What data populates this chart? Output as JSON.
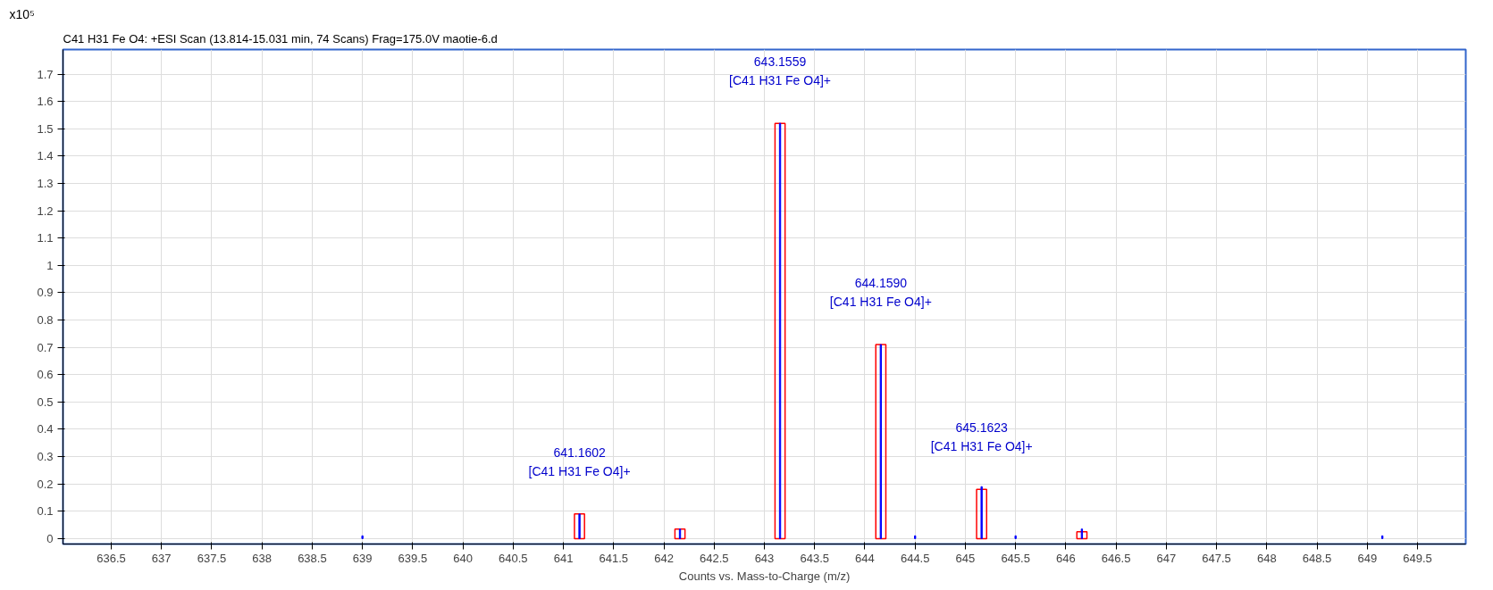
{
  "chart_data": {
    "type": "bar",
    "title": "C41 H31 Fe O4: +ESI Scan (13.814-15.031 min, 74 Scans) Frag=175.0V maotie-6.d",
    "ylabel": "x10⁵",
    "xlabel": "Counts vs. Mass-to-Charge (m/z)",
    "series": [
      {
        "color": "#ff0000",
        "x": [
          641.16,
          642.16,
          643.156,
          644.159,
          645.162,
          646.16
        ],
        "values": [
          0.09,
          0.035,
          1.52,
          0.71,
          0.18,
          0.025
        ]
      },
      {
        "color": "#0000ff",
        "x": [
          639.0,
          641.16,
          642.16,
          643.156,
          644.159,
          644.5,
          645.162,
          645.5,
          646.16,
          649.15
        ],
        "values": [
          0.01,
          0.09,
          0.035,
          1.52,
          0.71,
          0.01,
          0.19,
          0.01,
          0.035,
          0.01
        ]
      }
    ],
    "annotations": [
      {
        "text": "641.1602\n[C41 H31 Fe O4]+",
        "x": 641.1602,
        "y": 0.09
      },
      {
        "text": "643.1559\n[C41 H31 Fe O4]+",
        "x": 643.1559,
        "y": 1.52
      },
      {
        "text": "644.1590\n[C41 H31 Fe O4]+",
        "x": 644.159,
        "y": 0.71
      },
      {
        "text": "645.1623\n[C41 H31 Fe O4]+",
        "x": 645.1623,
        "y": 0.18
      }
    ],
    "xlim": [
      636.02,
      649.98
    ],
    "ylim": [
      -0.02,
      1.79
    ],
    "xticks": [
      636.5,
      637,
      637.5,
      638,
      638.5,
      639,
      639.5,
      640,
      640.5,
      641,
      641.5,
      642,
      642.5,
      643,
      643.5,
      644,
      644.5,
      645,
      645.5,
      646,
      646.5,
      647,
      647.5,
      648,
      648.5,
      649,
      649.5
    ],
    "yticks": [
      0,
      0.1,
      0.2,
      0.3,
      0.4,
      0.5,
      0.6,
      0.7,
      0.8,
      0.9,
      1,
      1.1,
      1.2,
      1.3,
      1.4,
      1.5,
      1.6,
      1.7
    ],
    "grid": true
  }
}
